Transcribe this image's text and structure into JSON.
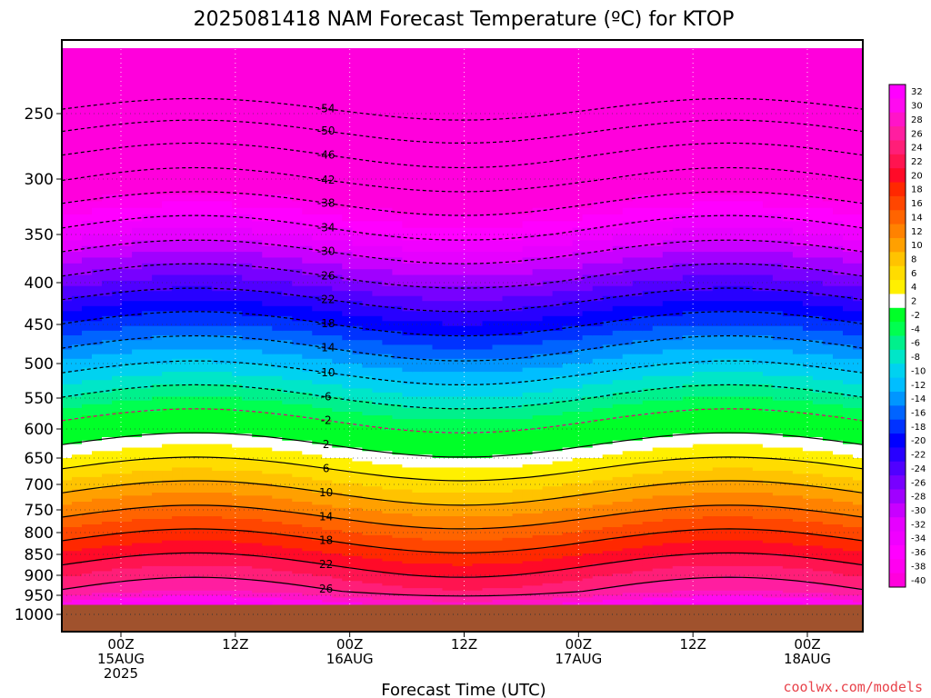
{
  "chart_data": {
    "type": "heatmap",
    "title": "2025081418 NAM Forecast Temperature (ºC) for KTOP",
    "xlabel": "Forecast Time (UTC)",
    "ylabel": "",
    "credit": "coolwx.com/models",
    "units": "°C",
    "y_axis": {
      "quantity": "pressure (hPa)",
      "ticks": [
        250,
        300,
        350,
        400,
        450,
        500,
        550,
        600,
        650,
        700,
        750,
        800,
        850,
        900,
        950,
        1000
      ],
      "ylim": [
        200,
        1040
      ]
    },
    "x_axis": {
      "ticks": [
        {
          "line1": "00Z",
          "line2": "15AUG",
          "line3": "2025"
        },
        {
          "line1": "12Z",
          "line2": "",
          "line3": ""
        },
        {
          "line1": "00Z",
          "line2": "16AUG",
          "line3": ""
        },
        {
          "line1": "12Z",
          "line2": "",
          "line3": ""
        },
        {
          "line1": "00Z",
          "line2": "17AUG",
          "line3": ""
        },
        {
          "line1": "12Z",
          "line2": "",
          "line3": ""
        },
        {
          "line1": "00Z",
          "line2": "18AUG",
          "line3": ""
        }
      ],
      "xlim": [
        "2025-08-14 18Z",
        "2025-08-18 06Z"
      ]
    },
    "grid": true,
    "legend_placement": "right",
    "colorbar": {
      "levels": [
        32,
        30,
        28,
        26,
        24,
        22,
        20,
        18,
        16,
        14,
        12,
        10,
        8,
        6,
        4,
        2,
        -2,
        -4,
        -6,
        -8,
        -10,
        -12,
        -14,
        -16,
        -18,
        -20,
        -22,
        -24,
        -26,
        -28,
        -30,
        -32,
        -34,
        -36,
        -38,
        -40
      ],
      "colors": [
        "#ff00ff",
        "#ff0af0",
        "#ff14c8",
        "#ff1ea0",
        "#ff1e78",
        "#ff1450",
        "#ff0a28",
        "#ff2800",
        "#ff4600",
        "#ff6400",
        "#ff8200",
        "#ffa000",
        "#ffc300",
        "#ffdc00",
        "#fff000",
        "#ffffff",
        "#00ff28",
        "#00ff50",
        "#00f08c",
        "#00e6c8",
        "#00d2f0",
        "#00beff",
        "#0096ff",
        "#0064ff",
        "#0032ff",
        "#0000ff",
        "#2800ff",
        "#5000ff",
        "#7800ff",
        "#a000ff",
        "#c800ff",
        "#e600ff",
        "#f000ff",
        "#ff00ff",
        "#ff00f0",
        "#ff00dc"
      ]
    },
    "contour_lines": {
      "solid_values": [
        2,
        6,
        10,
        14,
        18,
        22,
        26
      ],
      "dashed_values": [
        -2,
        -6,
        -10,
        -14,
        -18,
        -22,
        -26,
        -30,
        -34,
        -38,
        -42,
        -46,
        -50,
        -54
      ]
    },
    "ground_color": "#a0522d",
    "label_positions": [
      {
        "t": "0",
        "p": 212,
        "v": -54
      },
      {
        "t": "0.5",
        "p": 222,
        "v": -54
      },
      {
        "t": "0",
        "p": 232,
        "v": -50
      },
      {
        "t": "0.6",
        "p": 232,
        "v": -50
      },
      {
        "t": "0",
        "p": 250,
        "v": -46
      },
      {
        "t": "0",
        "p": 275,
        "v": -42
      },
      {
        "t": "0",
        "p": 285,
        "v": -38
      },
      {
        "t": "0",
        "p": 305,
        "v": -34
      },
      {
        "t": "0",
        "p": 330,
        "v": -30
      },
      {
        "t": "0",
        "p": 350,
        "v": -26
      },
      {
        "t": "0",
        "p": 370,
        "v": -22
      },
      {
        "t": "0",
        "p": 410,
        "v": -18
      },
      {
        "t": "0",
        "p": 430,
        "v": -14
      },
      {
        "t": "0",
        "p": 470,
        "v": -10
      },
      {
        "t": "0",
        "p": 505,
        "v": -6
      },
      {
        "t": "0",
        "p": 570,
        "v": -2
      },
      {
        "t": "0",
        "p": 600,
        "v": 2
      },
      {
        "t": "0",
        "p": 625,
        "v": 6
      },
      {
        "t": "0",
        "p": 660,
        "v": 10
      },
      {
        "t": "0",
        "p": 700,
        "v": 14
      },
      {
        "t": "0",
        "p": 760,
        "v": 18
      },
      {
        "t": "0",
        "p": 820,
        "v": 22
      },
      {
        "t": "0",
        "p": 880,
        "v": 26
      }
    ]
  }
}
